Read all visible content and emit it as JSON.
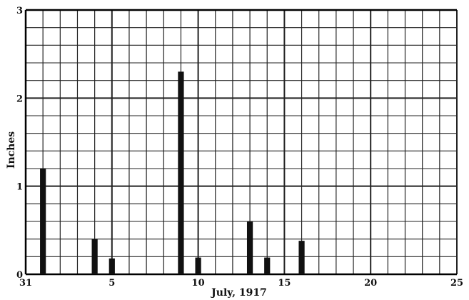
{
  "chart_data": {
    "type": "bar",
    "title": "",
    "xlabel": "July, 1917",
    "ylabel": "Inches",
    "xlim": [
      0,
      25
    ],
    "ylim": [
      0,
      3
    ],
    "x_ticks": [
      {
        "value": 0,
        "label": "31"
      },
      {
        "value": 5,
        "label": "5"
      },
      {
        "value": 10,
        "label": "10"
      },
      {
        "value": 15,
        "label": "15"
      },
      {
        "value": 20,
        "label": "20"
      },
      {
        "value": 25,
        "label": "25"
      }
    ],
    "y_ticks": [
      {
        "value": 0,
        "label": "0"
      },
      {
        "value": 1,
        "label": "1"
      },
      {
        "value": 2,
        "label": "2"
      },
      {
        "value": 3,
        "label": "3"
      }
    ],
    "x_minor_step": 1,
    "y_minor_step": 0.2,
    "grid": true,
    "bar_color": "#111111",
    "grid_color": "#222222",
    "bars": [
      {
        "day": 1,
        "value": 1.2
      },
      {
        "day": 4,
        "value": 0.4
      },
      {
        "day": 5,
        "value": 0.18
      },
      {
        "day": 9,
        "value": 2.3
      },
      {
        "day": 10,
        "value": 0.19
      },
      {
        "day": 13,
        "value": 0.6
      },
      {
        "day": 14,
        "value": 0.19
      },
      {
        "day": 16,
        "value": 0.38
      }
    ]
  }
}
